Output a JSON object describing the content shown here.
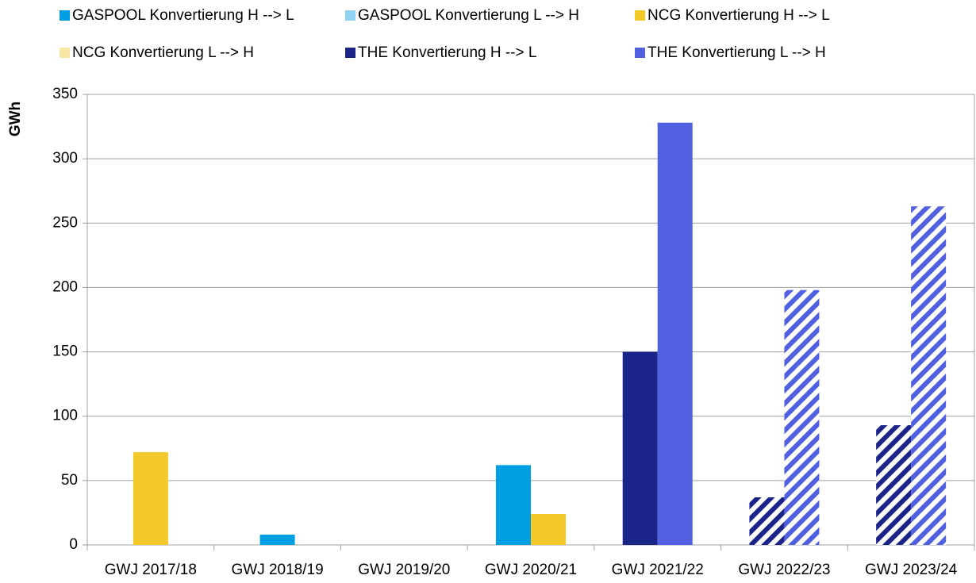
{
  "chart_data": {
    "type": "bar",
    "y_label": "GWh",
    "categories": [
      "GWJ 2017/18",
      "GWJ 2018/19",
      "GWJ 2019/20",
      "GWJ 2020/21",
      "GWJ 2021/22",
      "GWJ 2022/23",
      "GWJ 2023/24"
    ],
    "category_fill": [
      "solid",
      "solid",
      "solid",
      "solid",
      "solid",
      "hatched",
      "hatched"
    ],
    "series": [
      {
        "name": "GASPOOL Konvertierung H --> L",
        "color": "#009fe3",
        "values": [
          null,
          8,
          null,
          62,
          null,
          null,
          null
        ]
      },
      {
        "name": "GASPOOL Konvertierung L --> H",
        "color": "#8fd3f2",
        "values": [
          null,
          null,
          null,
          null,
          null,
          null,
          null
        ]
      },
      {
        "name": "NCG Konvertierung H --> L",
        "color": "#f2c928",
        "values": [
          72,
          null,
          null,
          24,
          null,
          null,
          null
        ]
      },
      {
        "name": "NCG Konvertierung L --> H",
        "color": "#f7e7a3",
        "values": [
          null,
          null,
          null,
          null,
          null,
          null,
          null
        ]
      },
      {
        "name": "THE Konvertierung H --> L",
        "color": "#1b2489",
        "values": [
          null,
          null,
          null,
          null,
          150,
          37,
          93
        ]
      },
      {
        "name": "THE Konvertierung L --> H",
        "color": "#5060e0",
        "values": [
          null,
          null,
          null,
          null,
          328,
          198,
          263
        ]
      }
    ],
    "ylim": [
      0,
      350
    ],
    "yticks": [
      0,
      50,
      100,
      150,
      200,
      250,
      300,
      350
    ],
    "grid": true
  }
}
